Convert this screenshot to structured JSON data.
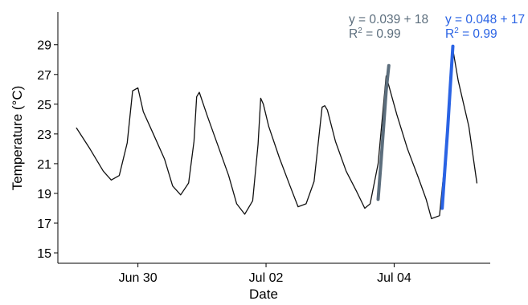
{
  "chart_data": {
    "type": "line",
    "title": "",
    "xlabel": "Date",
    "ylabel": "Temperature (°C)",
    "x_type": "date",
    "xlim": [
      "2021-06-28T18:00",
      "2021-07-05T12:00"
    ],
    "ylim": [
      14.3,
      31.2
    ],
    "x_ticks": [
      {
        "value": "2021-06-30T00:00",
        "label": "Jun 30"
      },
      {
        "value": "2021-07-02T00:00",
        "label": "Jul 02"
      },
      {
        "value": "2021-07-04T00:00",
        "label": "Jul 04"
      }
    ],
    "y_ticks": [
      15,
      17,
      19,
      21,
      23,
      25,
      27,
      29
    ],
    "grid": false,
    "legend": "none",
    "series": [
      {
        "color": "#111111",
        "x": [
          "2021-06-29T01:00",
          "2021-06-29T06:00",
          "2021-06-29T11:00",
          "2021-06-29T14:00",
          "2021-06-29T17:00",
          "2021-06-29T20:00",
          "2021-06-29T22:00",
          "2021-06-30T00:00",
          "2021-06-30T02:00",
          "2021-06-30T06:00",
          "2021-06-30T10:00",
          "2021-06-30T13:00",
          "2021-06-30T16:00",
          "2021-06-30T19:00",
          "2021-06-30T21:00",
          "2021-06-30T22:00",
          "2021-06-30T23:00",
          "2021-07-01T02:00",
          "2021-07-01T06:00",
          "2021-07-01T10:00",
          "2021-07-01T13:00",
          "2021-07-01T16:00",
          "2021-07-01T19:00",
          "2021-07-01T21:00",
          "2021-07-01T22:00",
          "2021-07-01T23:00",
          "2021-07-02T01:00",
          "2021-07-02T05:00",
          "2021-07-02T09:00",
          "2021-07-02T12:00",
          "2021-07-02T15:00",
          "2021-07-02T18:00",
          "2021-07-02T21:00",
          "2021-07-02T22:00",
          "2021-07-02T23:00",
          "2021-07-03T02:00",
          "2021-07-03T06:00",
          "2021-07-03T10:00",
          "2021-07-03T13:00",
          "2021-07-03T15:00",
          "2021-07-03T18:00",
          "2021-07-03T21:00",
          "2021-07-03T23:00",
          "2021-07-04T01:00",
          "2021-07-04T05:00",
          "2021-07-04T09:00",
          "2021-07-04T12:00",
          "2021-07-04T14:00",
          "2021-07-04T17:00",
          "2021-07-04T20:00",
          "2021-07-04T22:00",
          "2021-07-05T00:00",
          "2021-07-05T04:00",
          "2021-07-05T07:00"
        ],
        "y": [
          23.4,
          22.0,
          20.5,
          19.9,
          20.2,
          22.4,
          25.9,
          26.1,
          24.5,
          22.9,
          21.3,
          19.5,
          18.9,
          19.7,
          22.5,
          25.5,
          25.8,
          24.2,
          22.2,
          20.2,
          18.3,
          17.6,
          18.5,
          22.3,
          25.4,
          25.0,
          23.5,
          21.4,
          19.5,
          18.1,
          18.3,
          19.8,
          24.8,
          24.9,
          24.6,
          22.5,
          20.5,
          19.1,
          18.0,
          18.3,
          21.0,
          26.9,
          25.6,
          24.3,
          22.0,
          20.1,
          18.6,
          17.3,
          17.5,
          23.0,
          28.7,
          26.6,
          23.5,
          19.7
        ]
      },
      {
        "color": "#5c6e7d",
        "x": [
          "2021-07-03T18:00",
          "2021-07-03T19:00",
          "2021-07-03T20:00",
          "2021-07-03T21:00",
          "2021-07-03T22:00"
        ],
        "y": [
          18.6,
          20.9,
          23.4,
          25.9,
          27.6
        ]
      },
      {
        "color": "#2a63e4",
        "x": [
          "2021-07-04T18:00",
          "2021-07-04T19:00",
          "2021-07-04T20:00",
          "2021-07-04T21:00",
          "2021-07-04T22:00"
        ],
        "y": [
          18.0,
          20.6,
          23.2,
          26.1,
          28.9
        ]
      }
    ],
    "annotations": [
      {
        "line1": "y = 0.039 + 18",
        "r2_base": "R",
        "r2_sup": "2",
        "r2_rest": " = 0.99",
        "color": "#5c6e7d"
      },
      {
        "line1": "y = 0.048 + 17",
        "r2_base": "R",
        "r2_sup": "2",
        "r2_rest": " = 0.99",
        "color": "#2a63e4"
      }
    ]
  }
}
